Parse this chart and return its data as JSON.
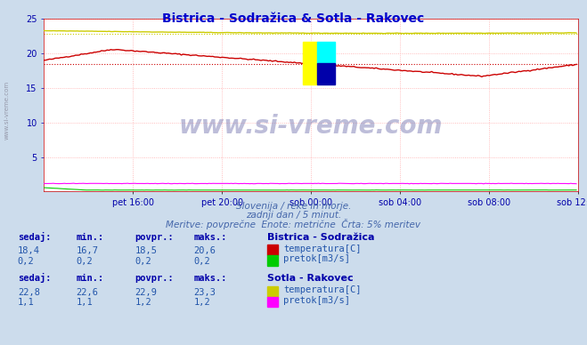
{
  "title": "Bistrica - Sodražica & Sotla - Rakovec",
  "title_color": "#0000cc",
  "bg_color": "#ccdcec",
  "plot_bg_color": "#ffffff",
  "grid_color": "#ffaaaa",
  "grid_style": ":",
  "xlabel_ticks": [
    "pet 16:00",
    "pet 20:00",
    "sob 00:00",
    "sob 04:00",
    "sob 08:00",
    "sob 12:00"
  ],
  "ylabel_min": 0,
  "ylabel_max": 25,
  "ylabel_ticks": [
    5,
    10,
    15,
    20,
    25
  ],
  "n_points": 288,
  "bistrica_temp_color": "#cc0000",
  "bistrica_flow_color": "#00cc00",
  "sotla_temp_color": "#cccc00",
  "sotla_flow_color": "#ff00ff",
  "watermark": "www.si-vreme.com",
  "watermark_color": "#8888bb",
  "watermark_alpha": 0.55,
  "subtitle1": "Slovenija / reke in morje.",
  "subtitle2": "zadnji dan / 5 minut.",
  "subtitle3": "Meritve: povprečne  Enote: metrične  Črta: 5% meritev",
  "subtitle_color": "#4466aa",
  "table_header_color": "#0000aa",
  "table_value_color": "#2255aa",
  "station1_name": "Bistrica - Sodražica",
  "station2_name": "Sotla - Rakovec",
  "s1_sedaj": "18,4",
  "s1_min": "16,7",
  "s1_povpr": "18,5",
  "s1_maks": "20,6",
  "s1_flow_sedaj": "0,2",
  "s1_flow_min": "0,2",
  "s1_flow_povpr": "0,2",
  "s1_flow_maks": "0,2",
  "s2_sedaj": "22,8",
  "s2_min": "22,6",
  "s2_povpr": "22,9",
  "s2_maks": "23,3",
  "s2_flow_sedaj": "1,1",
  "s2_flow_min": "1,1",
  "s2_flow_povpr": "1,2",
  "s2_flow_maks": "1,2",
  "bistrica_avg": 18.5,
  "sotla_avg": 22.9
}
